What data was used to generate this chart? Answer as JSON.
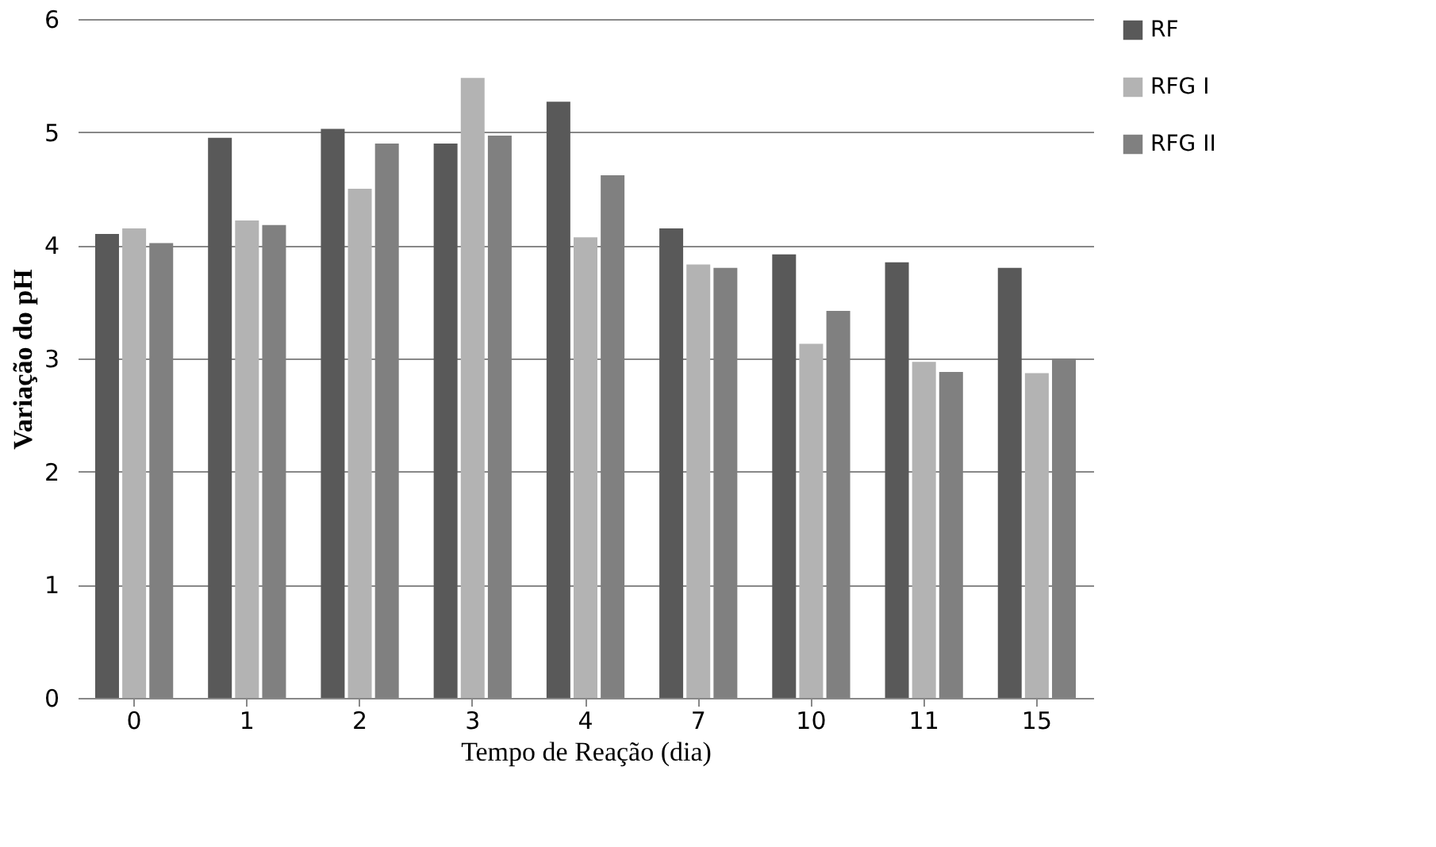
{
  "chart_data": {
    "type": "bar",
    "xlabel": "Tempo de Reação (dia)",
    "ylabel": "Variação do pH",
    "categories": [
      "0",
      "1",
      "2",
      "3",
      "4",
      "7",
      "10",
      "11",
      "15"
    ],
    "series": [
      {
        "name": "RF",
        "color": "#595959",
        "values": [
          4.1,
          4.95,
          5.03,
          4.9,
          5.27,
          4.15,
          3.92,
          3.85,
          3.8
        ]
      },
      {
        "name": "RFG I",
        "color": "#b3b3b3",
        "values": [
          4.15,
          4.22,
          4.5,
          5.48,
          4.07,
          3.83,
          3.13,
          2.97,
          2.87
        ]
      },
      {
        "name": "RFG II",
        "color": "#808080",
        "values": [
          4.02,
          4.18,
          4.9,
          4.97,
          4.62,
          3.8,
          3.42,
          2.88,
          3.0
        ]
      }
    ],
    "ylim": [
      0,
      6
    ],
    "yticks": [
      0,
      1,
      2,
      3,
      4,
      5,
      6
    ],
    "grid": "y",
    "legend": "right"
  }
}
